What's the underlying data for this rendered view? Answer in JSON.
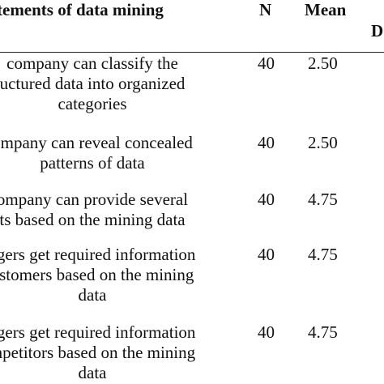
{
  "header": {
    "statements": "tements of data mining",
    "n": "N",
    "mean": "Mean",
    "sd_fragment": "D"
  },
  "rows": [
    {
      "lines": [
        "company can classify the",
        "uctured data into organized",
        "categories"
      ],
      "n": "40",
      "mean": "2.50"
    },
    {
      "lines": [
        "ompany can reveal concealed",
        "patterns of data"
      ],
      "n": "40",
      "mean": "2.50"
    },
    {
      "lines": [
        "ompany can provide several",
        "ts based on the mining data"
      ],
      "n": "40",
      "mean": "4.75"
    },
    {
      "lines": [
        "agers get required information",
        "ustomers based on the mining",
        "data"
      ],
      "n": "40",
      "mean": "4.75"
    },
    {
      "lines": [
        "agers get required information",
        "mpetitors based on the mining",
        "data"
      ],
      "n": "40",
      "mean": "4.75"
    }
  ]
}
